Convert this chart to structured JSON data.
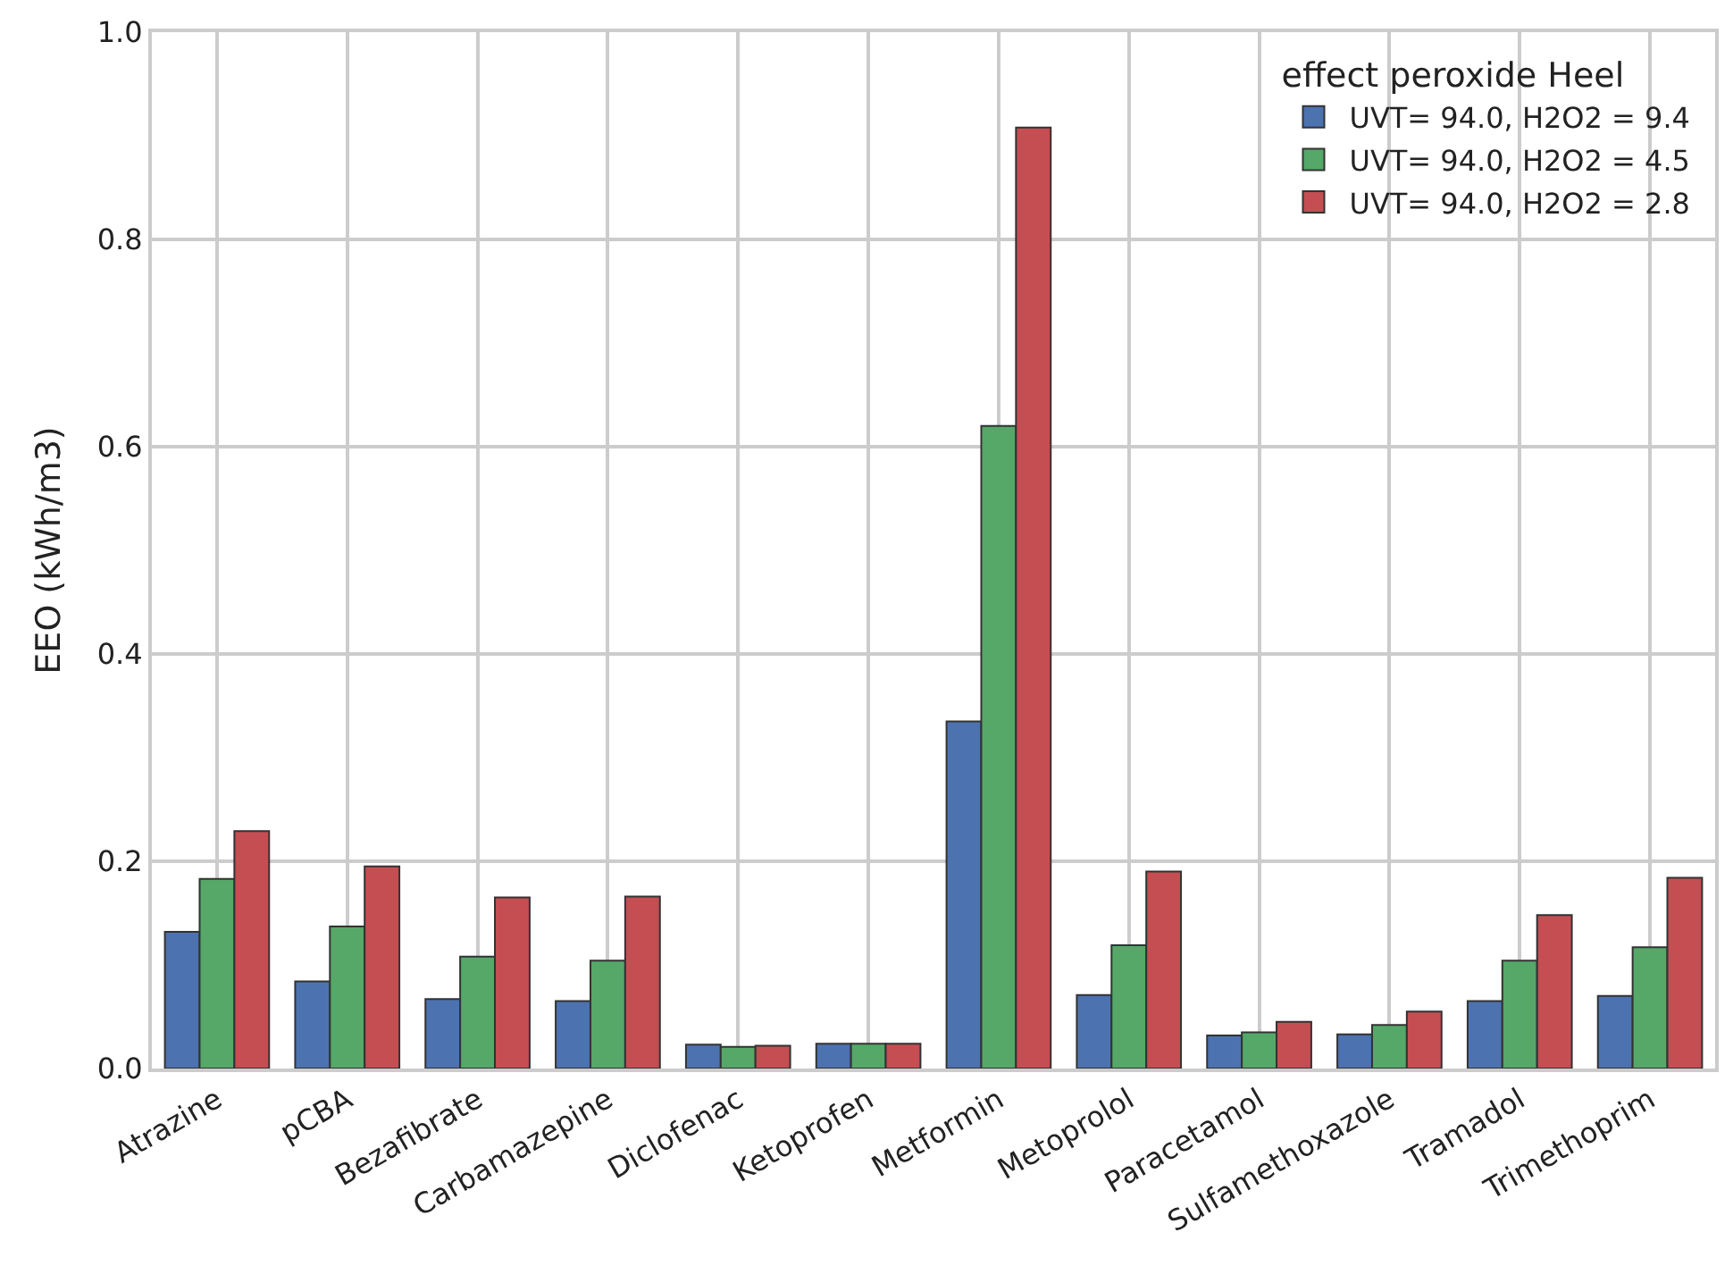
{
  "chart_data": {
    "type": "bar",
    "ylabel": "EEO (kWh/m3)",
    "legend_title": "effect peroxide Heel",
    "categories": [
      "Atrazine",
      "pCBA",
      "Bezafibrate",
      "Carbamazepine",
      "Diclofenac",
      "Ketoprofen",
      "Metformin",
      "Metoprolol",
      "Paracetamol",
      "Sulfamethoxazole",
      "Tramadol",
      "Trimethoprim"
    ],
    "series": [
      {
        "name": "UVT= 94.0, H2O2 = 9.4",
        "color": "#4c72b0",
        "values": [
          0.132,
          0.084,
          0.067,
          0.065,
          0.023,
          0.024,
          0.335,
          0.071,
          0.032,
          0.033,
          0.065,
          0.07
        ]
      },
      {
        "name": "UVT= 94.0, H2O2 = 4.5",
        "color": "#55a868",
        "values": [
          0.183,
          0.137,
          0.108,
          0.104,
          0.021,
          0.024,
          0.62,
          0.119,
          0.035,
          0.042,
          0.104,
          0.117
        ]
      },
      {
        "name": "UVT= 94.0, H2O2 = 2.8",
        "color": "#c44e52",
        "values": [
          0.229,
          0.195,
          0.165,
          0.166,
          0.022,
          0.024,
          0.908,
          0.19,
          0.045,
          0.055,
          0.148,
          0.184
        ]
      }
    ],
    "ylim": [
      0,
      1.0
    ],
    "yticks": [
      {
        "value": 0,
        "label": "0.0"
      },
      {
        "value": 0.2,
        "label": "0.2"
      },
      {
        "value": 0.4,
        "label": "0.4"
      },
      {
        "value": 0.6,
        "label": "0.6"
      },
      {
        "value": 0.8,
        "label": "0.8"
      },
      {
        "value": 1.0,
        "label": "1.0"
      }
    ],
    "grid": true,
    "legend": "top right"
  }
}
